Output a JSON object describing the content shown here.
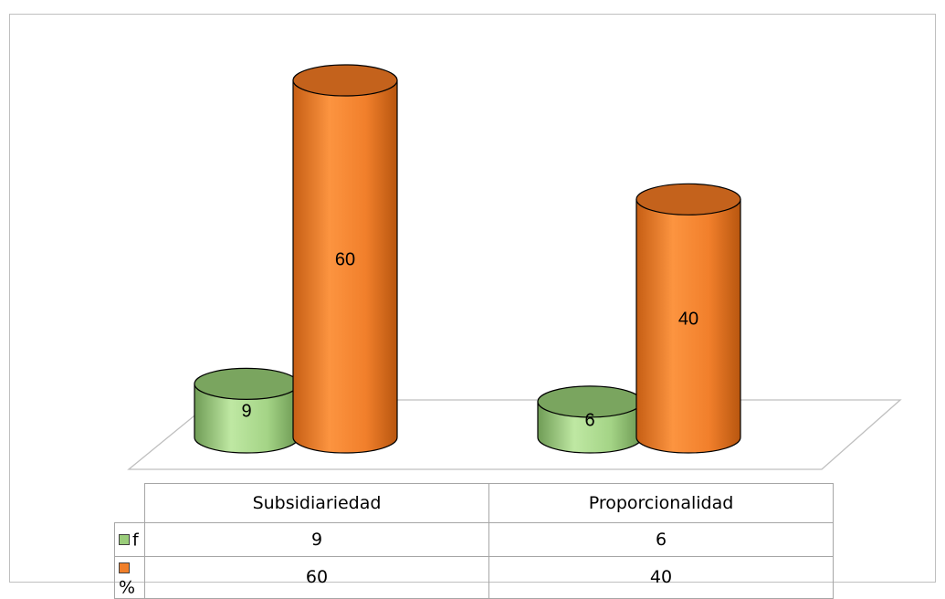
{
  "chart_data": {
    "type": "bar",
    "style": "3d-cylinder",
    "categories": [
      "Subsidiariedad",
      "Proporcionalidad"
    ],
    "series": [
      {
        "name": "f",
        "values": [
          9,
          6
        ],
        "color": "#9acd7a"
      },
      {
        "name": "%",
        "values": [
          60,
          40
        ],
        "color": "#f07f2a"
      }
    ],
    "data_labels": true,
    "legend": "data-table",
    "ylim": [
      0,
      60
    ]
  }
}
